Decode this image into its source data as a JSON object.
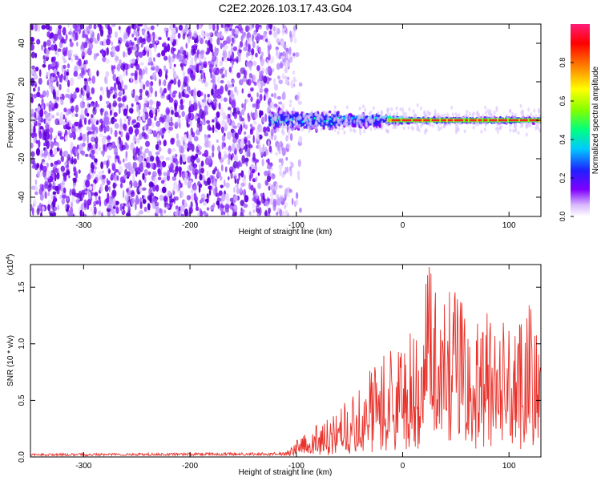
{
  "title": "C2E2.2026.103.17.43.G04",
  "chart_data": [
    {
      "type": "heatmap",
      "name": "spectrogram",
      "xlabel": "Height of straight line (km)",
      "ylabel": "Frequency (Hz)",
      "xlim": [
        -350,
        130
      ],
      "ylim": [
        -50,
        50
      ],
      "xticks": [
        -300,
        -200,
        -100,
        0,
        100
      ],
      "yticks": [
        -40,
        -20,
        0,
        20,
        40
      ],
      "colorbar": {
        "label": "Normalized spectral amplitude",
        "range": [
          0,
          1
        ],
        "ticks": [
          "0.0",
          "0.2",
          "0.4",
          "0.6",
          "0.8"
        ],
        "colormap": "rainbow"
      },
      "features": {
        "noise_region_km": [
          -350,
          -105
        ],
        "signal_band_start_km": -125,
        "signal_center_freq_hz": 0,
        "peak_band_start_km": -15
      }
    },
    {
      "type": "line",
      "name": "snr",
      "xlabel": "Height of straight line (km)",
      "ylabel": "SNR (10 * v/v)",
      "yscale_label": "(x10",
      "yscale_exponent": "4",
      "xlim": [
        -350,
        130
      ],
      "ylim": [
        0,
        1.7
      ],
      "xticks": [
        -300,
        -200,
        -100,
        0,
        100
      ],
      "yticks": [
        "0.0",
        "0.5",
        "1.0",
        "1.5"
      ],
      "color": "#e8312a",
      "envelope": [
        {
          "x": -350,
          "y": 0.03
        },
        {
          "x": -110,
          "y": 0.04
        },
        {
          "x": -100,
          "y": 0.15
        },
        {
          "x": -90,
          "y": 0.25
        },
        {
          "x": -75,
          "y": 0.3
        },
        {
          "x": -60,
          "y": 0.42
        },
        {
          "x": -45,
          "y": 0.58
        },
        {
          "x": -25,
          "y": 0.85
        },
        {
          "x": -10,
          "y": 0.95
        },
        {
          "x": 15,
          "y": 1.2
        },
        {
          "x": 25,
          "y": 1.68
        },
        {
          "x": 35,
          "y": 1.3
        },
        {
          "x": 48,
          "y": 1.55
        },
        {
          "x": 60,
          "y": 1.35
        },
        {
          "x": 75,
          "y": 1.25
        },
        {
          "x": 90,
          "y": 1.35
        },
        {
          "x": 105,
          "y": 1.1
        },
        {
          "x": 115,
          "y": 1.45
        },
        {
          "x": 130,
          "y": 1.1
        }
      ]
    }
  ]
}
